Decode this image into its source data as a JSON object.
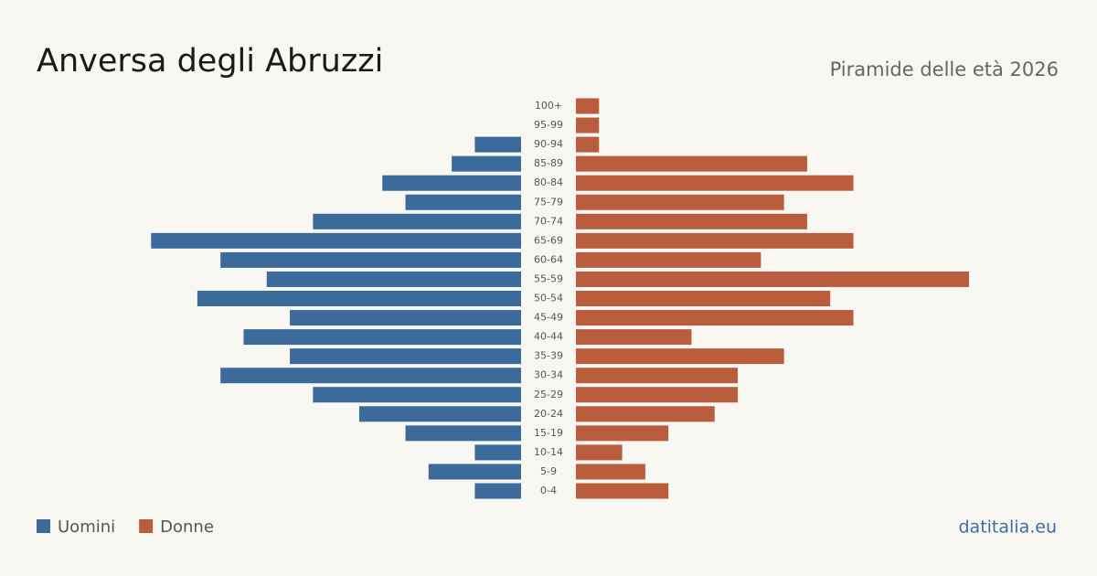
{
  "chart_data": {
    "type": "pyramid",
    "title": "Anversa degli Abruzzi",
    "subtitle": "Piramide delle età 2026",
    "source": "datitalia.eu",
    "categories": [
      "100+",
      "95-99",
      "90-94",
      "85-89",
      "80-84",
      "75-79",
      "70-74",
      "65-69",
      "60-64",
      "55-59",
      "50-54",
      "45-49",
      "40-44",
      "35-39",
      "30-34",
      "25-29",
      "20-24",
      "15-19",
      "10-14",
      "5-9",
      "0-4"
    ],
    "series": [
      {
        "name": "Uomini",
        "color": "#3b6a9b",
        "values": [
          0,
          0,
          2,
          3,
          6,
          5,
          9,
          16,
          13,
          11,
          14,
          10,
          12,
          10,
          13,
          9,
          7,
          5,
          2,
          4,
          2
        ]
      },
      {
        "name": "Donne",
        "color": "#b95d3d",
        "values": [
          1,
          1,
          1,
          10,
          12,
          9,
          10,
          12,
          8,
          17,
          11,
          12,
          5,
          9,
          7,
          7,
          6,
          4,
          2,
          3,
          4
        ]
      }
    ]
  }
}
